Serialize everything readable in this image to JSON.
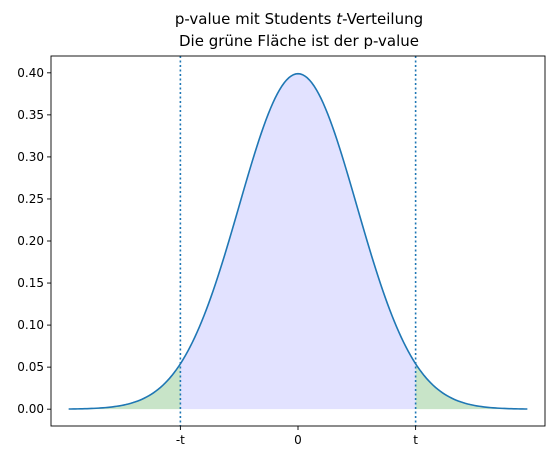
{
  "chart_data": {
    "type": "area",
    "title_line1_prefix": "p-value mit Students ",
    "title_line1_italic": "t",
    "title_line1_suffix": "-Verteilung",
    "title_line2": "Die grüne Fläche ist der p-value",
    "xlabel": "",
    "ylabel": "",
    "distribution": "Student t (approximately standard normal shape)",
    "x_range": [
      -4.2,
      4.2
    ],
    "ylim": [
      -0.02,
      0.42
    ],
    "t_value": 2,
    "x_ticks": [
      {
        "value": -2,
        "label": "-t"
      },
      {
        "value": 0,
        "label": "0"
      },
      {
        "value": 2,
        "label": "t"
      }
    ],
    "y_ticks": [
      {
        "value": 0.0,
        "label": "0.00"
      },
      {
        "value": 0.05,
        "label": "0.05"
      },
      {
        "value": 0.1,
        "label": "0.10"
      },
      {
        "value": 0.15,
        "label": "0.15"
      },
      {
        "value": 0.2,
        "label": "0.20"
      },
      {
        "value": 0.25,
        "label": "0.25"
      },
      {
        "value": 0.3,
        "label": "0.30"
      },
      {
        "value": 0.35,
        "label": "0.35"
      },
      {
        "value": 0.4,
        "label": "0.40"
      }
    ],
    "curve": {
      "x": [
        -3.9,
        -3.5,
        -3.0,
        -2.5,
        -2.0,
        -1.5,
        -1.0,
        -0.5,
        0.0,
        0.5,
        1.0,
        1.5,
        2.0,
        2.5,
        3.0,
        3.5,
        3.9
      ],
      "y": [
        0.0002,
        0.0009,
        0.0044,
        0.0175,
        0.054,
        0.1295,
        0.242,
        0.352,
        0.3989,
        0.352,
        0.242,
        0.1295,
        0.054,
        0.0175,
        0.0044,
        0.0009,
        0.0002
      ]
    },
    "grid": false,
    "legend": "none",
    "colors": {
      "curve": "#1f77b4",
      "center_fill": "#e2e2ff",
      "tail_fill": "#c8e4c8",
      "vline": "#1f77b4",
      "axes": "#000000"
    }
  }
}
